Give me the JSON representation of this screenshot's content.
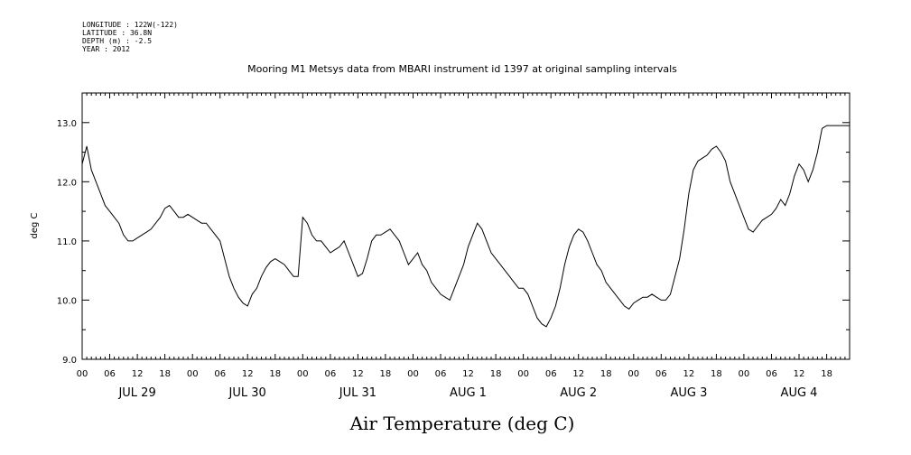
{
  "header": {
    "meta_lines": [
      "LONGITUDE : 122W(-122)",
      "LATITUDE : 36.8N",
      "DEPTH (m) : -2.5",
      "YEAR : 2012"
    ],
    "title": "Mooring M1 Metsys data from MBARI instrument id 1397 at original sampling intervals"
  },
  "chart_data": {
    "type": "line",
    "title": "Mooring M1 Metsys data from MBARI instrument id 1397 at original sampling intervals",
    "xlabel": "Air Temperature (deg C)",
    "ylabel": "deg C",
    "ylim": [
      9.0,
      13.5
    ],
    "xlim_hours": [
      0,
      167
    ],
    "y_tick_labels": [
      "9.0",
      "10.0",
      "11.0",
      "12.0",
      "13.0"
    ],
    "y_tick_values": [
      9.0,
      10.0,
      11.0,
      12.0,
      13.0
    ],
    "x_hour_tick_labels": [
      "00",
      "06",
      "12",
      "18",
      "00",
      "06",
      "12",
      "18",
      "00",
      "06",
      "12",
      "18",
      "00",
      "06",
      "12",
      "18",
      "00",
      "06",
      "12",
      "18",
      "00",
      "06",
      "12",
      "18",
      "00",
      "06",
      "12",
      "18"
    ],
    "day_labels": [
      "JUL 29",
      "JUL 30",
      "JUL 31",
      "AUG  1",
      "AUG  2",
      "AUG  3",
      "AUG  4"
    ],
    "grid": false,
    "series": [
      {
        "x_hours": [
          0,
          1,
          2,
          3,
          4,
          5,
          6,
          7,
          8,
          9,
          10,
          11,
          12,
          13,
          14,
          15,
          16,
          17,
          18,
          19,
          20,
          21,
          22,
          23,
          24,
          25,
          26,
          27,
          28,
          29,
          30,
          31,
          32,
          33,
          34,
          35,
          36,
          37,
          38,
          39,
          40,
          41,
          42,
          43,
          44,
          45,
          46,
          47,
          48,
          49,
          50,
          51,
          52,
          53,
          54,
          55,
          56,
          57,
          58,
          59,
          60,
          61,
          62,
          63,
          64,
          65,
          66,
          67,
          68,
          69,
          70,
          71,
          72,
          73,
          74,
          75,
          76,
          77,
          78,
          79,
          80,
          81,
          82,
          83,
          84,
          85,
          86,
          87,
          88,
          89,
          90,
          91,
          92,
          93,
          94,
          95,
          96,
          97,
          98,
          99,
          100,
          101,
          102,
          103,
          104,
          105,
          106,
          107,
          108,
          109,
          110,
          111,
          112,
          113,
          114,
          115,
          116,
          117,
          118,
          119,
          120,
          121,
          122,
          123,
          124,
          125,
          126,
          127,
          128,
          129,
          130,
          131,
          132,
          133,
          134,
          135,
          136,
          137,
          138,
          139,
          140,
          141,
          142,
          143,
          144,
          145,
          146,
          147,
          148,
          149,
          150,
          151,
          152,
          153,
          154,
          155,
          156,
          157,
          158,
          159,
          160,
          161,
          162,
          163,
          164,
          165,
          166,
          167
        ],
        "values": [
          12.3,
          12.6,
          12.2,
          12.0,
          11.8,
          11.6,
          11.5,
          11.4,
          11.3,
          11.1,
          11.0,
          11.0,
          11.05,
          11.1,
          11.15,
          11.2,
          11.3,
          11.4,
          11.55,
          11.6,
          11.5,
          11.4,
          11.4,
          11.45,
          11.4,
          11.35,
          11.3,
          11.3,
          11.2,
          11.1,
          11.0,
          10.7,
          10.4,
          10.2,
          10.05,
          9.95,
          9.9,
          10.1,
          10.2,
          10.4,
          10.55,
          10.65,
          10.7,
          10.65,
          10.6,
          10.5,
          10.4,
          10.4,
          11.4,
          11.3,
          11.1,
          11.0,
          11.0,
          10.9,
          10.8,
          10.85,
          10.9,
          11.0,
          10.8,
          10.6,
          10.4,
          10.45,
          10.7,
          11.0,
          11.1,
          11.1,
          11.15,
          11.2,
          11.1,
          11.0,
          10.8,
          10.6,
          10.7,
          10.8,
          10.6,
          10.5,
          10.3,
          10.2,
          10.1,
          10.05,
          10.0,
          10.2,
          10.4,
          10.6,
          10.9,
          11.1,
          11.3,
          11.2,
          11.0,
          10.8,
          10.7,
          10.6,
          10.5,
          10.4,
          10.3,
          10.2,
          10.2,
          10.1,
          9.9,
          9.7,
          9.6,
          9.55,
          9.7,
          9.9,
          10.2,
          10.6,
          10.9,
          11.1,
          11.2,
          11.15,
          11.0,
          10.8,
          10.6,
          10.5,
          10.3,
          10.2,
          10.1,
          10.0,
          9.9,
          9.85,
          9.95,
          10.0,
          10.05,
          10.05,
          10.1,
          10.05,
          10.0,
          10.0,
          10.1,
          10.4,
          10.7,
          11.2,
          11.8,
          12.2,
          12.35,
          12.4,
          12.45,
          12.55,
          12.6,
          12.5,
          12.35,
          12.0,
          11.8,
          11.6,
          11.4,
          11.2,
          11.15,
          11.25,
          11.35,
          11.4,
          11.45,
          11.55,
          11.7,
          11.6,
          11.8,
          12.1,
          12.3,
          12.2,
          12.0,
          12.2,
          12.5,
          12.9,
          12.95,
          12.95,
          12.95,
          12.95,
          12.95,
          12.95
        ]
      }
    ]
  }
}
